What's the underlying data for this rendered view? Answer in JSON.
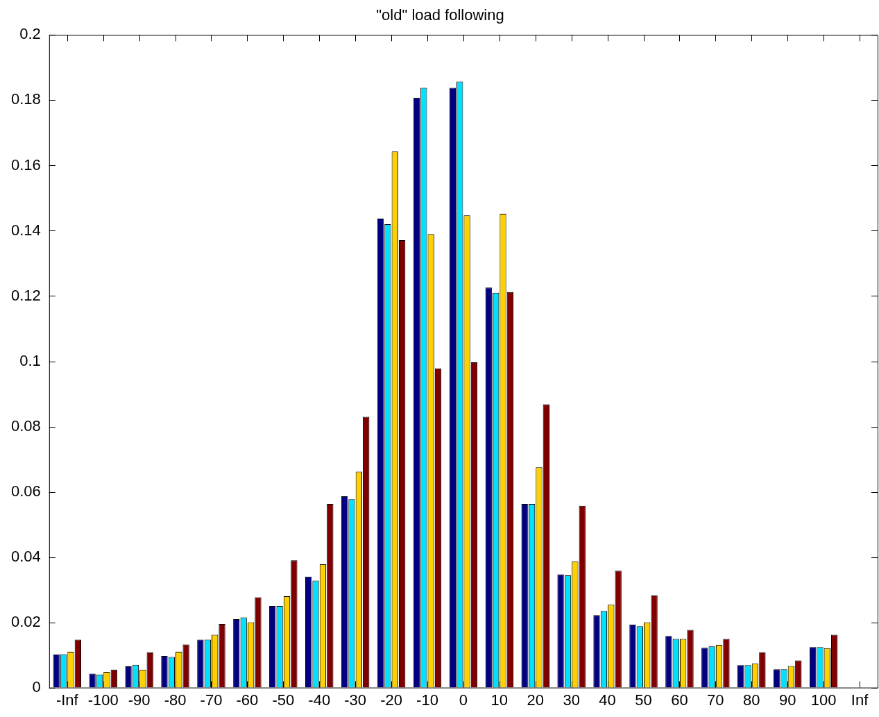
{
  "chart_data": {
    "type": "bar",
    "title": "\"old\" load following",
    "categories": [
      "-Inf",
      "-100",
      "-90",
      "-80",
      "-70",
      "-60",
      "-50",
      "-40",
      "-30",
      "-20",
      "-10",
      "0",
      "10",
      "20",
      "30",
      "40",
      "50",
      "60",
      "70",
      "80",
      "90",
      "100",
      "Inf"
    ],
    "series": [
      {
        "color": "#000080",
        "values": [
          0.0102,
          0.0043,
          0.0065,
          0.0097,
          0.0147,
          0.021,
          0.025,
          0.034,
          0.0586,
          0.1437,
          0.1808,
          0.1838,
          0.1226,
          0.0563,
          0.0347,
          0.0222,
          0.0193,
          0.0158,
          0.0122,
          0.0069,
          0.0056,
          0.0124,
          0
        ]
      },
      {
        "color": "#00e0ff",
        "values": [
          0.0102,
          0.004,
          0.007,
          0.0094,
          0.0147,
          0.0215,
          0.025,
          0.0328,
          0.0577,
          0.142,
          0.1838,
          0.1857,
          0.121,
          0.0563,
          0.0344,
          0.0235,
          0.0188,
          0.0149,
          0.0126,
          0.0069,
          0.0056,
          0.0124,
          0
        ]
      },
      {
        "color": "#ffd000",
        "values": [
          0.011,
          0.0048,
          0.0055,
          0.011,
          0.0162,
          0.02,
          0.028,
          0.0378,
          0.0662,
          0.1643,
          0.139,
          0.1447,
          0.1452,
          0.0675,
          0.0387,
          0.0254,
          0.02,
          0.0149,
          0.0131,
          0.0074,
          0.0066,
          0.0121,
          0
        ]
      },
      {
        "color": "#800000",
        "values": [
          0.0147,
          0.0055,
          0.0108,
          0.0132,
          0.0195,
          0.0277,
          0.039,
          0.0563,
          0.083,
          0.1371,
          0.0978,
          0.0997,
          0.1212,
          0.0868,
          0.0557,
          0.0358,
          0.0282,
          0.0177,
          0.0149,
          0.0108,
          0.0083,
          0.0162,
          0
        ]
      }
    ],
    "ylim": [
      0,
      0.2
    ],
    "yticks": [
      0,
      0.02,
      0.04,
      0.06,
      0.08,
      0.1,
      0.12,
      0.14,
      0.16,
      0.18,
      0.2
    ],
    "grid": false,
    "legend": false
  }
}
